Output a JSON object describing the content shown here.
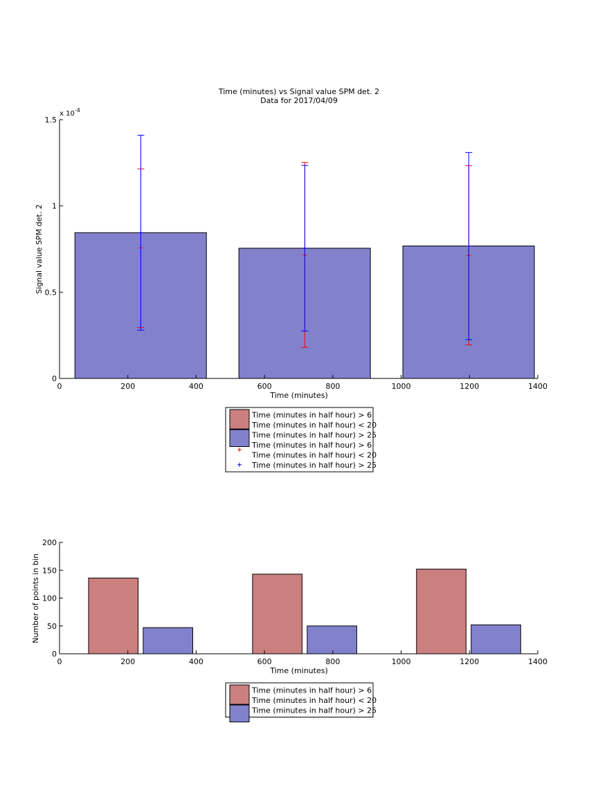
{
  "chart_data": [
    {
      "type": "bar",
      "title": "Time (minutes) vs Signal value SPM det. 2",
      "subtitle": "Data for 2017/04/09",
      "xlabel": "Time (minutes)",
      "ylabel": "Signal value SPM det. 2",
      "exponent_base": "x 10",
      "exponent_power": "-4",
      "xlim": [
        0,
        1400
      ],
      "ylim": [
        0,
        1.5
      ],
      "xticks": [
        "0",
        "200",
        "400",
        "600",
        "800",
        "1000",
        "1200",
        "1400"
      ],
      "yticks": [
        "0",
        "0.5",
        "1",
        "1.5"
      ],
      "bar_spans": [
        [
          45,
          430
        ],
        [
          525,
          910
        ],
        [
          1005,
          1390
        ]
      ],
      "series": [
        {
          "name": "Time (minutes in half hour) > 25",
          "kind": "bar",
          "color": "#8181cc",
          "values": [
            0.845,
            0.755,
            0.768
          ]
        },
        {
          "name": "Time (minutes in half hour) > 6 Time (minutes in half hour) < 20",
          "kind": "errorbar",
          "color": "#ff0000",
          "x": [
            238,
            718,
            1198
          ],
          "values": [
            0.757,
            0.715,
            0.713
          ],
          "upper": [
            1.215,
            1.252,
            1.233
          ],
          "lower": [
            0.295,
            0.18,
            0.195
          ]
        },
        {
          "name": "Time (minutes in half hour) > 25",
          "kind": "errorbar",
          "color": "#0000ff",
          "x": [
            238,
            718,
            1198
          ],
          "values": [
            0.845,
            0.755,
            0.768
          ],
          "upper": [
            1.41,
            1.235,
            1.31
          ],
          "lower": [
            0.28,
            0.275,
            0.225
          ]
        }
      ],
      "legend": {
        "position": "below",
        "entries": [
          {
            "kind": "patch",
            "color": "#cc7f7f",
            "lines": [
              "Time (minutes in half hour) > 6",
              "Time (minutes in half hour) < 20"
            ]
          },
          {
            "kind": "patch",
            "color": "#8181cc",
            "lines": [
              "Time (minutes in half hour) > 25"
            ]
          },
          {
            "kind": "marker",
            "color": "#ff0000",
            "lines": [
              "Time (minutes in half hour) > 6",
              "Time (minutes in half hour) < 20"
            ]
          },
          {
            "kind": "marker",
            "color": "#0000ff",
            "lines": [
              "Time (minutes in half hour) > 25"
            ]
          }
        ]
      }
    },
    {
      "type": "bar",
      "xlabel": "Time (minutes)",
      "ylabel": "Number of points in bin",
      "xlim": [
        0,
        1400
      ],
      "ylim": [
        0,
        200
      ],
      "xticks": [
        "0",
        "200",
        "400",
        "600",
        "800",
        "1000",
        "1200",
        "1400"
      ],
      "yticks": [
        "0",
        "50",
        "100",
        "150",
        "200"
      ],
      "series": [
        {
          "name": "Time (minutes in half hour) > 6 Time (minutes in half hour) < 20",
          "color": "#cc7f7f",
          "spans": [
            [
              85,
              230
            ],
            [
              565,
              710
            ],
            [
              1045,
              1190
            ]
          ],
          "values": [
            136,
            143,
            152
          ]
        },
        {
          "name": "Time (minutes in half hour) > 25",
          "color": "#8181cc",
          "spans": [
            [
              245,
              390
            ],
            [
              725,
              870
            ],
            [
              1205,
              1350
            ]
          ],
          "values": [
            47,
            50,
            52
          ]
        }
      ],
      "legend": {
        "position": "below",
        "entries": [
          {
            "kind": "patch",
            "color": "#cc7f7f",
            "lines": [
              "Time (minutes in half hour) > 6",
              "Time (minutes in half hour) < 20"
            ]
          },
          {
            "kind": "patch",
            "color": "#8181cc",
            "lines": [
              "Time (minutes in half hour) > 25"
            ]
          }
        ]
      }
    }
  ]
}
